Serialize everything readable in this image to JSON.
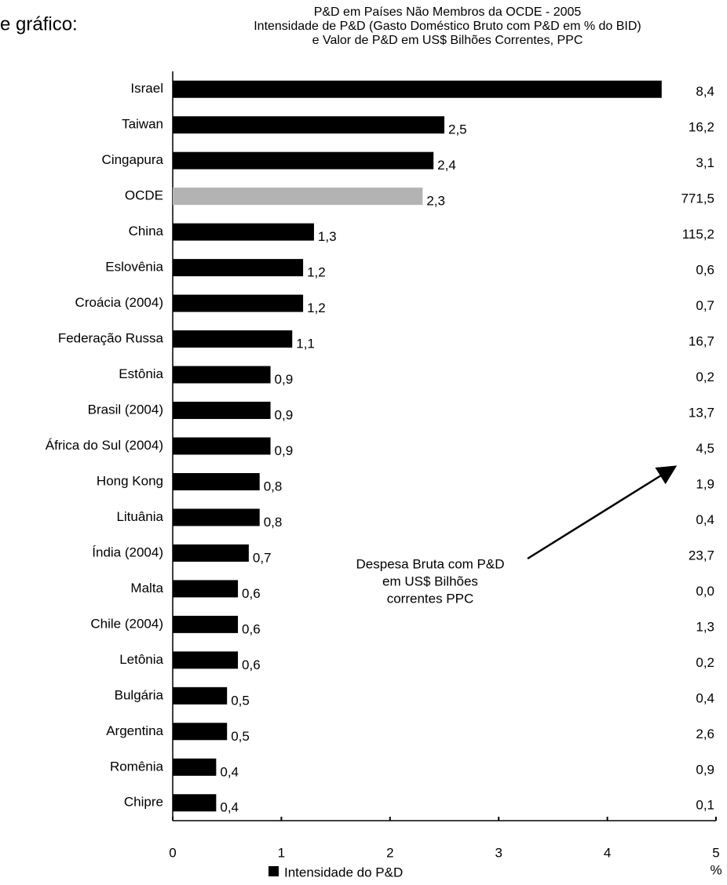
{
  "intro": "e gráfico:",
  "chart_data": {
    "type": "bar",
    "orientation": "horizontal",
    "title": "P&D em Países Não Membros da OCDE - 2005",
    "subtitle": [
      "Intensidade de P&D (Gasto Doméstico Bruto com P&D em % do BID)",
      "e Valor de P&D em US$ Bilhões Correntes, PPC"
    ],
    "categories": [
      "Israel",
      "Taiwan",
      "Cingapura",
      "OCDE",
      "China",
      "Eslovênia",
      "Croácia (2004)",
      "Federação Russa",
      "Estônia",
      "Brasil (2004)",
      "África do Sul (2004)",
      "Hong Kong",
      "Lituânia",
      "Índia (2004)",
      "Malta",
      "Chile (2004)",
      "Letônia",
      "Bulgária",
      "Argentina",
      "Romênia",
      "Chipre"
    ],
    "series": [
      {
        "name": "Intensidade do P&D",
        "color": "#000000",
        "colors": [
          "#000000",
          "#000000",
          "#000000",
          "#b3b3b3",
          "#000000",
          "#000000",
          "#000000",
          "#000000",
          "#000000",
          "#000000",
          "#000000",
          "#000000",
          "#000000",
          "#000000",
          "#000000",
          "#000000",
          "#000000",
          "#000000",
          "#000000",
          "#000000",
          "#000000"
        ],
        "values": [
          4.5,
          2.5,
          2.4,
          2.3,
          1.3,
          1.2,
          1.2,
          1.1,
          0.9,
          0.9,
          0.9,
          0.8,
          0.8,
          0.7,
          0.6,
          0.6,
          0.6,
          0.5,
          0.5,
          0.4,
          0.4
        ],
        "value_labels": [
          null,
          "2,5",
          "2,4",
          "2,3",
          "1,3",
          "1,2",
          "1,2",
          "1,1",
          "0,9",
          "0,9",
          "0,9",
          "0,8",
          "0,8",
          "0,7",
          "0,6",
          "0,6",
          "0,6",
          "0,5",
          "0,5",
          "0,4",
          "0,4"
        ]
      }
    ],
    "spending": {
      "values": [
        8.4,
        16.2,
        3.1,
        771.5,
        115.2,
        0.6,
        0.7,
        16.7,
        0.2,
        13.7,
        4.5,
        1.9,
        0.4,
        23.7,
        0.0,
        1.3,
        0.2,
        0.4,
        2.6,
        0.9,
        0.1
      ],
      "value_labels": [
        "8,4",
        "16,2",
        "3,1",
        "771,5",
        "115,2",
        "0,6",
        "0,7",
        "16,7",
        "0,2",
        "13,7",
        "4,5",
        "1,9",
        "0,4",
        "23,7",
        "0,0",
        "1,3",
        "0,2",
        "0,4",
        "2,6",
        "0,9",
        "0,1"
      ]
    },
    "annotation": [
      "Despesa Bruta com P&D",
      "em US$ Bilhões",
      "correntes PPC"
    ],
    "xlabel": "%",
    "xlim": [
      0,
      5
    ],
    "xticks": [
      0,
      1,
      2,
      3,
      4,
      5
    ],
    "grid": false,
    "legend": "bottom"
  }
}
